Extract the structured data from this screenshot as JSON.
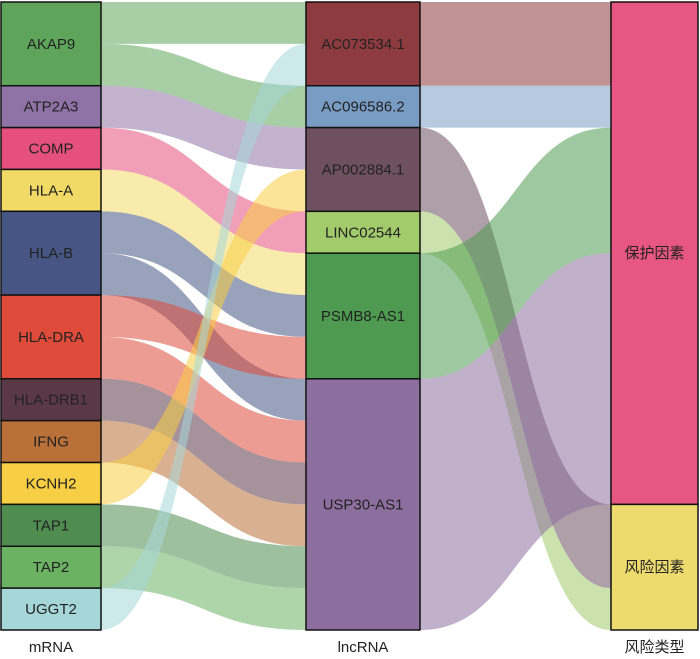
{
  "chart_data": {
    "type": "sankey",
    "columns": [
      "mRNA",
      "lncRNA",
      "风险类型"
    ],
    "nodes": {
      "mRNA": [
        {
          "name": "AKAP9",
          "color": "#5ea55b"
        },
        {
          "name": "ATP2A3",
          "color": "#8f72a6"
        },
        {
          "name": "COMP",
          "color": "#e6507f"
        },
        {
          "name": "HLA-A",
          "color": "#f2da66"
        },
        {
          "name": "HLA-B",
          "color": "#465583"
        },
        {
          "name": "HLA-DRA",
          "color": "#de4b3b"
        },
        {
          "name": "HLA-DRB1",
          "color": "#5b3848"
        },
        {
          "name": "IFNG",
          "color": "#b97139"
        },
        {
          "name": "KCNH2",
          "color": "#f7ce44"
        },
        {
          "name": "TAP1",
          "color": "#4f8c50"
        },
        {
          "name": "TAP2",
          "color": "#6bb362"
        },
        {
          "name": "UGGT2",
          "color": "#a5d7d8"
        }
      ],
      "lncRNA": [
        {
          "name": "AC073534.1",
          "color": "#8e3b3f"
        },
        {
          "name": "AC096586.2",
          "color": "#789cc4"
        },
        {
          "name": "AP002884.1",
          "color": "#6e5060"
        },
        {
          "name": "LINC02544",
          "color": "#a2cb6c"
        },
        {
          "name": "PSMB8-AS1",
          "color": "#4e9a51"
        },
        {
          "name": "USP30-AS1",
          "color": "#8c6f9e"
        }
      ],
      "风险类型": [
        {
          "name": "保护因素",
          "color": "#e85784"
        },
        {
          "name": "风险因素",
          "color": "#eedb6e"
        }
      ]
    },
    "links_mrna_lncrna": [
      {
        "source": "AKAP9",
        "target": "AC073534.1",
        "value": 1
      },
      {
        "source": "AKAP9",
        "target": "AC096586.2",
        "value": 1
      },
      {
        "source": "ATP2A3",
        "target": "AP002884.1",
        "value": 1
      },
      {
        "source": "COMP",
        "target": "LINC02544",
        "value": 1
      },
      {
        "source": "HLA-A",
        "target": "PSMB8-AS1",
        "value": 1
      },
      {
        "source": "HLA-B",
        "target": "PSMB8-AS1",
        "value": 1
      },
      {
        "source": "HLA-B",
        "target": "USP30-AS1",
        "value": 1
      },
      {
        "source": "HLA-DRA",
        "target": "PSMB8-AS1",
        "value": 1
      },
      {
        "source": "HLA-DRA",
        "target": "USP30-AS1",
        "value": 1
      },
      {
        "source": "HLA-DRB1",
        "target": "USP30-AS1",
        "value": 1
      },
      {
        "source": "IFNG",
        "target": "USP30-AS1",
        "value": 1
      },
      {
        "source": "KCNH2",
        "target": "AP002884.1",
        "value": 1
      },
      {
        "source": "TAP1",
        "target": "USP30-AS1",
        "value": 1
      },
      {
        "source": "TAP2",
        "target": "USP30-AS1",
        "value": 1
      },
      {
        "source": "UGGT2",
        "target": "AC073534.1",
        "value": 1
      }
    ],
    "links_lncrna_risk": [
      {
        "source": "AC073534.1",
        "target": "保护因素",
        "value": 2
      },
      {
        "source": "AC096586.2",
        "target": "保护因素",
        "value": 1
      },
      {
        "source": "AP002884.1",
        "target": "风险因素",
        "value": 2
      },
      {
        "source": "LINC02544",
        "target": "风险因素",
        "value": 1
      },
      {
        "source": "PSMB8-AS1",
        "target": "保护因素",
        "value": 3
      },
      {
        "source": "USP30-AS1",
        "target": "保护因素",
        "value": 6
      }
    ],
    "link_opacity": 0.55
  }
}
